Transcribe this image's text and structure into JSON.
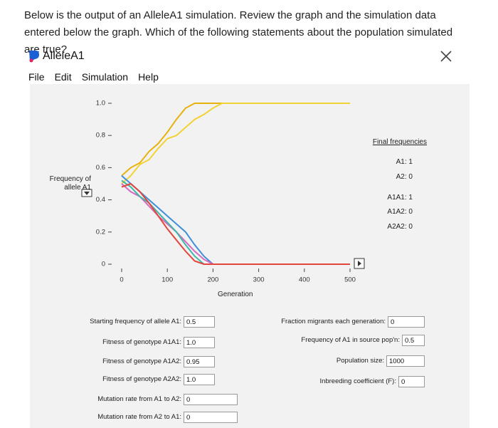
{
  "question": "Below is the output of an AlleleA1 simulation. Review the graph and the simulation data entered below the graph. Which of the following statements about the population simulated are true?",
  "window_title": "AlleleA1",
  "menu": [
    "File",
    "Edit",
    "Simulation",
    "Help"
  ],
  "chart_data": {
    "type": "line",
    "ylabel": "Frequency of allele A1",
    "xlabel": "Generation",
    "x": [
      0,
      20,
      40,
      60,
      80,
      100,
      120,
      140,
      160,
      180,
      200,
      220,
      240,
      260,
      280,
      300,
      320,
      340,
      360,
      380,
      400,
      420,
      440,
      460,
      480,
      500
    ],
    "xlim": [
      0,
      500
    ],
    "xticks": [
      0,
      100,
      200,
      300,
      400,
      500
    ],
    "ylim": [
      0,
      1
    ],
    "yticks": [
      0,
      0.2,
      0.4,
      0.6,
      0.8,
      {
        "value": 1,
        "label": "1.0"
      }
    ],
    "series": [
      {
        "color": "#e8b20c",
        "values": [
          0.55,
          0.6,
          0.63,
          0.7,
          0.75,
          0.82,
          0.9,
          0.97,
          1,
          1,
          1,
          1,
          1,
          1,
          1,
          1,
          1,
          1,
          1,
          1,
          1,
          1,
          1,
          1,
          1,
          1
        ]
      },
      {
        "color": "#f3d234",
        "values": [
          0.5,
          0.55,
          0.62,
          0.65,
          0.72,
          0.78,
          0.8,
          0.85,
          0.9,
          0.93,
          0.97,
          1,
          1,
          1,
          1,
          1,
          1,
          1,
          1,
          1,
          1,
          1,
          1,
          1,
          1,
          1
        ]
      },
      {
        "color": "#3e8fd8",
        "values": [
          0.55,
          0.5,
          0.45,
          0.4,
          0.35,
          0.3,
          0.25,
          0.2,
          0.12,
          0.05,
          0,
          0,
          0,
          0,
          0,
          0,
          0,
          0,
          0,
          0,
          0,
          0,
          0,
          0,
          0,
          0
        ]
      },
      {
        "color": "#d56bbf",
        "values": [
          0.5,
          0.45,
          0.42,
          0.36,
          0.3,
          0.25,
          0.2,
          0.14,
          0.08,
          0.03,
          0,
          0,
          0,
          0,
          0,
          0,
          0,
          0,
          0,
          0,
          0,
          0,
          0,
          0,
          0,
          0
        ]
      },
      {
        "color": "#3fb8a8",
        "values": [
          0.52,
          0.48,
          0.42,
          0.38,
          0.32,
          0.26,
          0.2,
          0.12,
          0.05,
          0,
          0,
          0,
          0,
          0,
          0,
          0,
          0,
          0,
          0,
          0,
          0,
          0,
          0,
          0,
          0,
          0
        ]
      },
      {
        "color": "#e2453a",
        "values": [
          0.48,
          0.5,
          0.45,
          0.38,
          0.3,
          0.22,
          0.15,
          0.08,
          0.02,
          0,
          0,
          0,
          0,
          0,
          0,
          0,
          0,
          0,
          0,
          0,
          0,
          0,
          0,
          0,
          0,
          0
        ]
      }
    ]
  },
  "final_frequencies": {
    "title": "Final frequencies",
    "items": [
      "A1: 1",
      "A2: 0",
      "A1A1: 1",
      "A1A2: 0",
      "A2A2: 0"
    ]
  },
  "parameters_left": [
    {
      "label": "Starting frequency of allele A1:",
      "value": "0.5"
    },
    {
      "label": "Fitness of genotype A1A1:",
      "value": "1.0"
    },
    {
      "label": "Fitness of genotype A1A2:",
      "value": "0.95"
    },
    {
      "label": "Fitness of genotype A2A2:",
      "value": "1.0"
    },
    {
      "label": "Mutation rate from A1 to A2:",
      "value": "0"
    },
    {
      "label": "Mutation rate from A2 to A1:",
      "value": "0"
    }
  ],
  "parameters_right": [
    {
      "label": "Fraction migrants each generation:",
      "value": "0"
    },
    {
      "label": "Frequency of A1 in source pop'n:",
      "value": "0.5"
    },
    {
      "label": "Population size:",
      "value": "1000"
    },
    {
      "label": "Inbreeding coefficient (F):",
      "value": "0"
    }
  ]
}
